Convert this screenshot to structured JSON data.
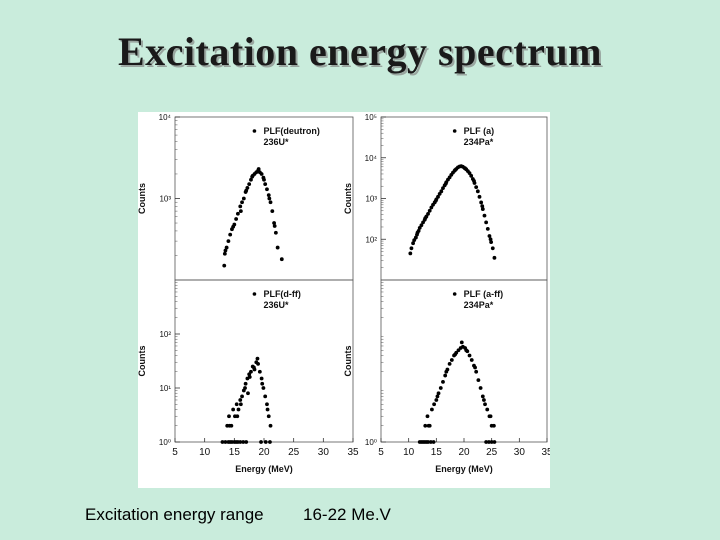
{
  "slide": {
    "title": "Excitation energy spectrum",
    "caption_label": "Excitation energy range",
    "caption_value": "16-22 Me.V"
  },
  "colors": {
    "background": "#c9ecdc",
    "panel": "#ffffff",
    "marker": "#000000"
  },
  "chart_data": [
    {
      "type": "scatter",
      "panel": "top-left",
      "legend": "PLF(deutron)",
      "legend_sub": "236U*",
      "legend_position": "top-right",
      "ylabel": "Counts",
      "xlabel": "",
      "log_y": true,
      "ylim": [
        100,
        10000
      ],
      "xlim": [
        5,
        35
      ],
      "y_ticks": [
        {
          "v": 1000,
          "label": "10³"
        },
        {
          "v": 10000,
          "label": "10⁴"
        }
      ],
      "x_ticks": [],
      "points": [
        [
          13.3,
          150
        ],
        [
          13.5,
          230
        ],
        [
          13.7,
          250
        ],
        [
          14,
          300
        ],
        [
          14.3,
          360
        ],
        [
          14.6,
          420
        ],
        [
          15,
          480
        ],
        [
          15.3,
          560
        ],
        [
          15.6,
          650
        ],
        [
          16,
          800
        ],
        [
          16.3,
          900
        ],
        [
          16.6,
          1000
        ],
        [
          16.9,
          1200
        ],
        [
          17.2,
          1350
        ],
        [
          17.5,
          1500
        ],
        [
          17.8,
          1700
        ],
        [
          18.1,
          1900
        ],
        [
          18.4,
          2000
        ],
        [
          18.7,
          2100
        ],
        [
          19,
          2200
        ],
        [
          19.3,
          2100
        ],
        [
          19.6,
          2000
        ],
        [
          19.9,
          1800
        ],
        [
          20.2,
          1500
        ],
        [
          20.5,
          1300
        ],
        [
          20.8,
          1100
        ],
        [
          21.1,
          900
        ],
        [
          21.4,
          700
        ],
        [
          21.7,
          500
        ],
        [
          22,
          380
        ],
        [
          22.3,
          250
        ],
        [
          23,
          180
        ],
        [
          13.4,
          210
        ],
        [
          14.8,
          450
        ],
        [
          16.1,
          700
        ],
        [
          17,
          1250
        ],
        [
          18,
          1850
        ],
        [
          19.1,
          2300
        ],
        [
          20,
          1700
        ],
        [
          20.9,
          1000
        ],
        [
          21.8,
          460
        ]
      ]
    },
    {
      "type": "scatter",
      "panel": "top-right",
      "legend": "PLF (a)",
      "legend_sub": "234Pa*",
      "legend_position": "top-right",
      "ylabel": "Counts",
      "xlabel": "",
      "log_y": true,
      "ylim": [
        10,
        100000
      ],
      "xlim": [
        5,
        35
      ],
      "y_ticks": [
        {
          "v": 100,
          "label": "10²"
        },
        {
          "v": 1000,
          "label": "10³"
        },
        {
          "v": 10000,
          "label": "10⁴"
        },
        {
          "v": 100000,
          "label": "10⁵"
        }
      ],
      "x_ticks": [],
      "points": [
        [
          10.3,
          45
        ],
        [
          10.5,
          60
        ],
        [
          10.8,
          80
        ],
        [
          11,
          95
        ],
        [
          11.3,
          110
        ],
        [
          11.5,
          130
        ],
        [
          11.8,
          160
        ],
        [
          12,
          190
        ],
        [
          12.3,
          220
        ],
        [
          12.6,
          260
        ],
        [
          12.9,
          300
        ],
        [
          13.2,
          360
        ],
        [
          13.5,
          420
        ],
        [
          13.8,
          500
        ],
        [
          14.1,
          600
        ],
        [
          14.4,
          700
        ],
        [
          14.7,
          800
        ],
        [
          15,
          950
        ],
        [
          15.3,
          1100
        ],
        [
          15.6,
          1300
        ],
        [
          15.9,
          1500
        ],
        [
          16.2,
          1800
        ],
        [
          16.5,
          2100
        ],
        [
          16.8,
          2500
        ],
        [
          17.1,
          2900
        ],
        [
          17.4,
          3300
        ],
        [
          17.7,
          3800
        ],
        [
          18,
          4300
        ],
        [
          18.3,
          4800
        ],
        [
          18.6,
          5300
        ],
        [
          18.9,
          5800
        ],
        [
          19.2,
          6100
        ],
        [
          19.5,
          6200
        ],
        [
          19.8,
          6000
        ],
        [
          20.1,
          5600
        ],
        [
          20.4,
          5200
        ],
        [
          20.7,
          4700
        ],
        [
          21,
          4200
        ],
        [
          21.3,
          3600
        ],
        [
          21.6,
          3000
        ],
        [
          21.9,
          2400
        ],
        [
          22.2,
          1900
        ],
        [
          22.5,
          1500
        ],
        [
          22.8,
          1100
        ],
        [
          23.1,
          800
        ],
        [
          23.4,
          550
        ],
        [
          23.7,
          380
        ],
        [
          24,
          260
        ],
        [
          24.3,
          180
        ],
        [
          24.6,
          120
        ],
        [
          24.9,
          85
        ],
        [
          25.2,
          60
        ],
        [
          25.5,
          35
        ],
        [
          11.6,
          145
        ],
        [
          13,
          330
        ],
        [
          14.9,
          880
        ],
        [
          16.7,
          2300
        ],
        [
          18.4,
          5000
        ],
        [
          20.2,
          5500
        ],
        [
          21.8,
          2700
        ],
        [
          23.3,
          650
        ],
        [
          24.8,
          100
        ]
      ]
    },
    {
      "type": "scatter",
      "panel": "bottom-left",
      "legend": "PLF(d-ff)",
      "legend_sub": "236U*",
      "legend_position": "top-right",
      "ylabel": "Counts",
      "xlabel": "Energy (MeV)",
      "log_y": true,
      "ylim": [
        1,
        1000
      ],
      "xlim": [
        5,
        35
      ],
      "y_ticks": [
        {
          "v": 1,
          "label": "10⁰"
        },
        {
          "v": 10,
          "label": "10¹"
        },
        {
          "v": 100,
          "label": "10²"
        }
      ],
      "x_ticks": [
        {
          "v": 5,
          "label": "5"
        },
        {
          "v": 10,
          "label": "10"
        },
        {
          "v": 15,
          "label": "15"
        },
        {
          "v": 20,
          "label": "20"
        },
        {
          "v": 25,
          "label": "25"
        },
        {
          "v": 30,
          "label": "30"
        },
        {
          "v": 35,
          "label": "35"
        }
      ],
      "points": [
        [
          13,
          1
        ],
        [
          13.5,
          1
        ],
        [
          14,
          1
        ],
        [
          14.3,
          1
        ],
        [
          14.6,
          1
        ],
        [
          15,
          1
        ],
        [
          15.3,
          1
        ],
        [
          15.6,
          1
        ],
        [
          16,
          1
        ],
        [
          16.5,
          1
        ],
        [
          17,
          1
        ],
        [
          13.8,
          2
        ],
        [
          14.1,
          3
        ],
        [
          14.5,
          2
        ],
        [
          14.8,
          4
        ],
        [
          15.1,
          3
        ],
        [
          15.4,
          5
        ],
        [
          15.7,
          4
        ],
        [
          16,
          6
        ],
        [
          16.3,
          7
        ],
        [
          16.6,
          9
        ],
        [
          16.9,
          12
        ],
        [
          17.2,
          15
        ],
        [
          17.5,
          18
        ],
        [
          17.8,
          20
        ],
        [
          18.1,
          25
        ],
        [
          18.4,
          22
        ],
        [
          18.7,
          30
        ],
        [
          19,
          28
        ],
        [
          19.3,
          20
        ],
        [
          19.6,
          15
        ],
        [
          19.9,
          10
        ],
        [
          20.2,
          7
        ],
        [
          20.5,
          5
        ],
        [
          20.8,
          3
        ],
        [
          21.1,
          2
        ],
        [
          19.5,
          1
        ],
        [
          20.3,
          1
        ],
        [
          21,
          1
        ],
        [
          14.2,
          2
        ],
        [
          15.5,
          3
        ],
        [
          16.8,
          10
        ],
        [
          17.6,
          16
        ],
        [
          18.3,
          24
        ],
        [
          18.9,
          35
        ],
        [
          19.7,
          12
        ],
        [
          20.6,
          4
        ],
        [
          17.3,
          8
        ],
        [
          16.1,
          5
        ]
      ]
    },
    {
      "type": "scatter",
      "panel": "bottom-right",
      "legend": "PLF (a-ff)",
      "legend_sub": "234Pa*",
      "legend_position": "top-right",
      "ylabel": "Counts",
      "xlabel": "Energy (MeV)",
      "log_y": true,
      "ylim": [
        1,
        1000
      ],
      "xlim": [
        5,
        35
      ],
      "y_ticks": [
        {
          "v": 1,
          "label": "10⁰"
        }
      ],
      "x_ticks": [
        {
          "v": 5,
          "label": "5"
        },
        {
          "v": 10,
          "label": "10"
        },
        {
          "v": 15,
          "label": "15"
        },
        {
          "v": 20,
          "label": "20"
        },
        {
          "v": 25,
          "label": "25"
        },
        {
          "v": 30,
          "label": "30"
        },
        {
          "v": 35,
          "label": "35"
        }
      ],
      "points": [
        [
          12,
          1
        ],
        [
          12.3,
          1
        ],
        [
          12.6,
          1
        ],
        [
          12.9,
          1
        ],
        [
          13.2,
          1
        ],
        [
          13.5,
          1
        ],
        [
          14,
          1
        ],
        [
          14.5,
          1
        ],
        [
          13,
          2
        ],
        [
          13.4,
          3
        ],
        [
          13.8,
          2
        ],
        [
          14.2,
          4
        ],
        [
          14.6,
          5
        ],
        [
          15,
          6
        ],
        [
          15.4,
          8
        ],
        [
          15.8,
          10
        ],
        [
          16.2,
          13
        ],
        [
          16.6,
          17
        ],
        [
          17,
          22
        ],
        [
          17.4,
          28
        ],
        [
          17.8,
          33
        ],
        [
          18.2,
          40
        ],
        [
          18.6,
          45
        ],
        [
          19,
          50
        ],
        [
          19.4,
          55
        ],
        [
          19.8,
          58
        ],
        [
          20.2,
          55
        ],
        [
          20.6,
          48
        ],
        [
          21,
          40
        ],
        [
          21.4,
          33
        ],
        [
          21.8,
          26
        ],
        [
          22.2,
          20
        ],
        [
          22.6,
          14
        ],
        [
          23,
          10
        ],
        [
          23.4,
          7
        ],
        [
          23.8,
          5
        ],
        [
          24.2,
          4
        ],
        [
          24.6,
          3
        ],
        [
          25,
          2
        ],
        [
          25.4,
          2
        ],
        [
          24,
          1
        ],
        [
          24.5,
          1
        ],
        [
          25,
          1
        ],
        [
          25.5,
          1
        ],
        [
          13.6,
          2
        ],
        [
          15.2,
          7
        ],
        [
          16.8,
          20
        ],
        [
          18.4,
          42
        ],
        [
          19.6,
          70
        ],
        [
          20.4,
          50
        ],
        [
          22,
          24
        ],
        [
          23.6,
          6
        ],
        [
          24.8,
          3
        ]
      ]
    }
  ]
}
